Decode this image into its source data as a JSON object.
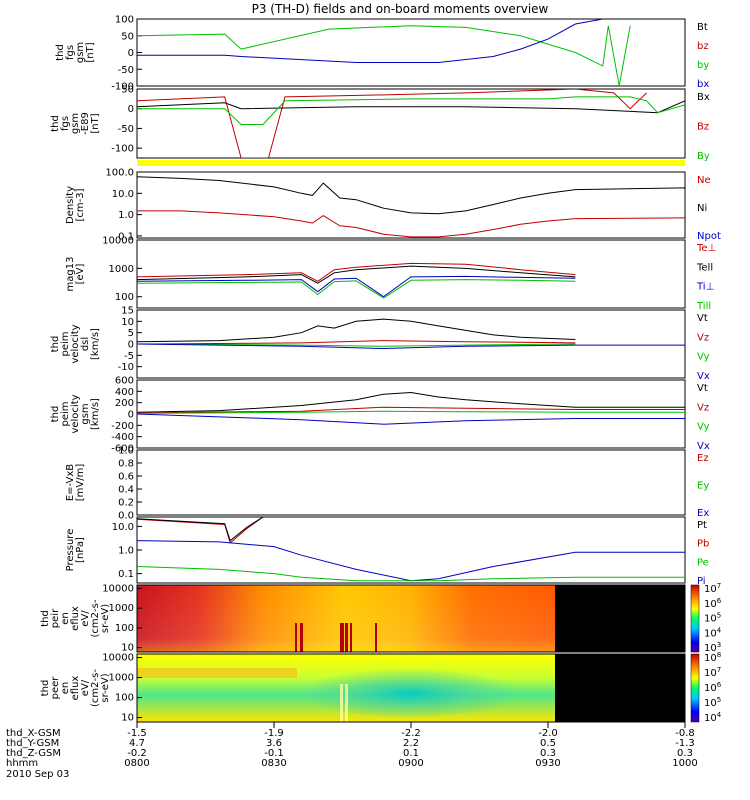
{
  "title": "P3 (TH-D) fields and on-board moments overview",
  "date_label": "2010 Sep 03",
  "footer": {
    "row_labels": [
      "thd_X-GSM",
      "thd_Y-GSM",
      "thd_Z-GSM",
      "hhmm"
    ],
    "columns": [
      {
        "x": "-1.5",
        "y": "4.7",
        "z": "-0.2",
        "t": "0800"
      },
      {
        "x": "-1.9",
        "y": "3.6",
        "z": "-0.1",
        "t": "0830"
      },
      {
        "x": "-2.2",
        "y": "2.2",
        "z": "0.1",
        "t": "0900"
      },
      {
        "x": "-2.0",
        "y": "0.5",
        "z": "0.3",
        "t": "0930"
      },
      {
        "x": "-0.8",
        "y": "-1.3",
        "z": "0.3",
        "t": "1000"
      }
    ]
  },
  "colors": {
    "black": "#000000",
    "red": "#c00000",
    "green": "#00c000",
    "blue": "#0000c0",
    "yellow": "#ffff00"
  },
  "chart_data": [
    {
      "type": "line",
      "ylabel": [
        "thd",
        "fgs",
        "gsm",
        "[nT]"
      ],
      "ylim": [
        -100,
        100
      ],
      "yticks": [
        {
          "v": 100,
          "l": "100"
        },
        {
          "v": 50,
          "l": "50"
        },
        {
          "v": 0,
          "l": "0"
        },
        {
          "v": -50,
          "l": "-50"
        },
        {
          "v": -100,
          "l": "-100"
        }
      ],
      "legend": [
        {
          "t": "Bt",
          "c": "#000000"
        },
        {
          "t": "bz",
          "c": "#c00000"
        },
        {
          "t": "by",
          "c": "#00c000"
        },
        {
          "t": "bx",
          "c": "#0000c0"
        }
      ],
      "series": [
        {
          "color": "#00c000",
          "x": [
            0,
            0.16,
            0.19,
            0.35,
            0.5,
            0.6,
            0.7,
            0.8,
            0.85,
            0.86,
            0.88,
            0.9
          ],
          "y": [
            50,
            55,
            10,
            70,
            80,
            75,
            50,
            0,
            -40,
            80,
            -100,
            80
          ]
        },
        {
          "color": "#0000c0",
          "x": [
            0,
            0.16,
            0.19,
            0.4,
            0.55,
            0.65,
            0.7,
            0.75,
            0.8,
            0.85
          ],
          "y": [
            -8,
            -8,
            -12,
            -30,
            -30,
            -12,
            10,
            40,
            85,
            100
          ]
        }
      ]
    },
    {
      "type": "line",
      "ylabel": [
        "thd",
        "fgs",
        "gsm",
        "-E89",
        "[nT]"
      ],
      "ylim": [
        -125,
        50
      ],
      "yticks": [
        {
          "v": 50,
          "l": "50"
        },
        {
          "v": 0,
          "l": "0"
        },
        {
          "v": -50,
          "l": "-50"
        },
        {
          "v": -100,
          "l": "-100"
        }
      ],
      "legend": [
        {
          "t": "Bx",
          "c": "#000000"
        },
        {
          "t": "Bz",
          "c": "#c00000"
        },
        {
          "t": "By",
          "c": "#00c000"
        }
      ],
      "series": [
        {
          "color": "#c00000",
          "x": [
            0,
            0.16,
            0.19,
            0.24,
            0.27,
            0.45,
            0.6,
            0.8,
            0.87,
            0.9,
            0.93
          ],
          "y": [
            20,
            30,
            -125,
            -125,
            30,
            35,
            40,
            50,
            40,
            0,
            40
          ]
        },
        {
          "color": "#000000",
          "x": [
            0,
            0.16,
            0.19,
            0.4,
            0.6,
            0.8,
            0.95,
            1
          ],
          "y": [
            5,
            15,
            0,
            5,
            5,
            0,
            -10,
            20
          ]
        },
        {
          "color": "#00c000",
          "x": [
            0,
            0.16,
            0.19,
            0.23,
            0.27,
            0.5,
            0.75,
            0.8,
            0.9,
            0.93,
            0.95,
            1
          ],
          "y": [
            0,
            0,
            -40,
            -40,
            20,
            25,
            25,
            30,
            30,
            20,
            -10,
            10
          ]
        }
      ]
    },
    {
      "type": "line",
      "ylabel": [
        "Density",
        "[cm-3]"
      ],
      "ylim": [
        0.08,
        100
      ],
      "yscale": "log",
      "yticks": [
        {
          "v": 100,
          "l": "100.0"
        },
        {
          "v": 10,
          "l": "10.0"
        },
        {
          "v": 1,
          "l": "1.0"
        },
        {
          "v": 0.1,
          "l": "0.1"
        }
      ],
      "legend": [
        {
          "t": "Ne",
          "c": "#c00000"
        },
        {
          "t": "Ni",
          "c": "#000000"
        },
        {
          "t": "Npot",
          "c": "#0000c0"
        }
      ],
      "series": [
        {
          "color": "#000000",
          "x": [
            0,
            0.08,
            0.15,
            0.25,
            0.3,
            0.32,
            0.34,
            0.37,
            0.4,
            0.45,
            0.5,
            0.55,
            0.6,
            0.65,
            0.7,
            0.75,
            0.8,
            1
          ],
          "y": [
            60,
            50,
            40,
            20,
            10,
            8,
            30,
            6,
            5,
            2,
            1.2,
            1.1,
            1.5,
            3,
            6,
            10,
            15,
            18
          ]
        },
        {
          "color": "#c00000",
          "x": [
            0,
            0.08,
            0.15,
            0.25,
            0.3,
            0.32,
            0.34,
            0.37,
            0.4,
            0.45,
            0.5,
            0.55,
            0.6,
            0.65,
            0.7,
            0.75,
            0.8,
            1
          ],
          "y": [
            1.5,
            1.5,
            1.2,
            0.8,
            0.5,
            0.4,
            0.9,
            0.3,
            0.25,
            0.12,
            0.09,
            0.09,
            0.12,
            0.2,
            0.35,
            0.5,
            0.65,
            0.7
          ]
        }
      ]
    },
    {
      "type": "line",
      "ylabel": [
        "mag13",
        "[eV]"
      ],
      "ylim": [
        40,
        10000
      ],
      "yscale": "log",
      "yticks": [
        {
          "v": 10000,
          "l": "10000"
        },
        {
          "v": 1000,
          "l": "1000"
        },
        {
          "v": 100,
          "l": "100"
        }
      ],
      "legend": [
        {
          "t": "Te⊥",
          "c": "#c00000"
        },
        {
          "t": "Tell",
          "c": "#000000"
        },
        {
          "t": "Ti⊥",
          "c": "#0000c0"
        },
        {
          "t": "Till",
          "c": "#00c000"
        }
      ],
      "series": [
        {
          "color": "#c00000",
          "x": [
            0,
            0.2,
            0.3,
            0.33,
            0.36,
            0.4,
            0.5,
            0.6,
            0.7,
            0.8
          ],
          "y": [
            500,
            600,
            700,
            350,
            900,
            1100,
            1500,
            1400,
            900,
            600
          ]
        },
        {
          "color": "#000000",
          "x": [
            0,
            0.2,
            0.3,
            0.33,
            0.36,
            0.4,
            0.5,
            0.6,
            0.7,
            0.8
          ],
          "y": [
            400,
            500,
            600,
            300,
            700,
            900,
            1200,
            1000,
            700,
            500
          ]
        },
        {
          "color": "#0000c0",
          "x": [
            0,
            0.2,
            0.3,
            0.33,
            0.36,
            0.4,
            0.45,
            0.5,
            0.6,
            0.7,
            0.8
          ],
          "y": [
            350,
            380,
            400,
            150,
            420,
            450,
            100,
            500,
            520,
            480,
            450
          ]
        },
        {
          "color": "#00c000",
          "x": [
            0,
            0.2,
            0.3,
            0.33,
            0.36,
            0.4,
            0.45,
            0.5,
            0.6,
            0.7,
            0.8
          ],
          "y": [
            300,
            320,
            330,
            120,
            340,
            360,
            90,
            380,
            400,
            380,
            350
          ]
        }
      ]
    },
    {
      "type": "line",
      "ylabel": [
        "thd",
        "peim",
        "velocity",
        "dsl",
        "[km/s]"
      ],
      "ylim": [
        -15,
        15
      ],
      "yticks": [
        {
          "v": 15,
          "l": "15"
        },
        {
          "v": 10,
          "l": "10"
        },
        {
          "v": 5,
          "l": "5"
        },
        {
          "v": 0,
          "l": "0"
        },
        {
          "v": -5,
          "l": "-5"
        },
        {
          "v": -10,
          "l": "-10"
        }
      ],
      "legend": [
        {
          "t": "Vt",
          "c": "#000000"
        },
        {
          "t": "Vz",
          "c": "#c00000"
        },
        {
          "t": "Vy",
          "c": "#00c000"
        },
        {
          "t": "Vx",
          "c": "#0000c0"
        }
      ],
      "series": [
        {
          "color": "#000000",
          "x": [
            0,
            0.15,
            0.25,
            0.3,
            0.33,
            0.36,
            0.4,
            0.45,
            0.5,
            0.55,
            0.6,
            0.65,
            0.7,
            0.8
          ],
          "y": [
            1,
            1.5,
            3,
            5,
            8,
            7,
            10,
            11,
            10,
            8,
            6,
            4,
            3,
            2
          ]
        },
        {
          "color": "#c00000",
          "x": [
            0,
            0.3,
            0.45,
            0.6,
            0.8
          ],
          "y": [
            0,
            0.5,
            1.5,
            1,
            0.5
          ]
        },
        {
          "color": "#00c000",
          "x": [
            0,
            0.3,
            0.45,
            0.6,
            0.8
          ],
          "y": [
            0,
            -0.5,
            -1,
            -0.5,
            0
          ]
        },
        {
          "color": "#0000c0",
          "x": [
            0,
            0.3,
            0.45,
            0.6,
            0.8,
            1
          ],
          "y": [
            0,
            -1,
            -2,
            -1,
            -0.5,
            -0.5
          ]
        }
      ]
    },
    {
      "type": "line",
      "ylabel": [
        "thd",
        "peim",
        "velocity",
        "gsm",
        "[km/s]"
      ],
      "ylim": [
        -600,
        600
      ],
      "yticks": [
        {
          "v": 600,
          "l": "600"
        },
        {
          "v": 400,
          "l": "400"
        },
        {
          "v": 200,
          "l": "200"
        },
        {
          "v": 0,
          "l": "0"
        },
        {
          "v": -200,
          "l": "-200"
        },
        {
          "v": -400,
          "l": "-400"
        },
        {
          "v": -600,
          "l": "-600"
        }
      ],
      "legend": [
        {
          "t": "Vt",
          "c": "#000000"
        },
        {
          "t": "Vz",
          "c": "#c00000"
        },
        {
          "t": "Vy",
          "c": "#00c000"
        },
        {
          "t": "Vx",
          "c": "#0000c0"
        }
      ],
      "series": [
        {
          "color": "#000000",
          "x": [
            0,
            0.15,
            0.3,
            0.4,
            0.45,
            0.5,
            0.55,
            0.6,
            0.7,
            0.8,
            1
          ],
          "y": [
            30,
            60,
            150,
            250,
            350,
            380,
            300,
            250,
            180,
            120,
            120
          ]
        },
        {
          "color": "#c00000",
          "x": [
            0,
            0.3,
            0.45,
            0.6,
            0.8,
            1
          ],
          "y": [
            20,
            50,
            120,
            100,
            80,
            80
          ]
        },
        {
          "color": "#00c000",
          "x": [
            0,
            0.3,
            0.45,
            0.6,
            0.8,
            1
          ],
          "y": [
            10,
            30,
            50,
            40,
            30,
            30
          ]
        },
        {
          "color": "#0000c0",
          "x": [
            0,
            0.3,
            0.45,
            0.6,
            0.8,
            1
          ],
          "y": [
            0,
            -100,
            -180,
            -120,
            -80,
            -80
          ]
        }
      ]
    },
    {
      "type": "line",
      "ylabel": [
        "E=-VxB",
        "[mV/m]"
      ],
      "ylim": [
        0,
        1
      ],
      "yticks": [
        {
          "v": 1,
          "l": "1.0"
        },
        {
          "v": 0.8,
          "l": "0.8"
        },
        {
          "v": 0.6,
          "l": "0.6"
        },
        {
          "v": 0.4,
          "l": "0.4"
        },
        {
          "v": 0.2,
          "l": "0.2"
        },
        {
          "v": 0,
          "l": "0.0"
        }
      ],
      "legend": [
        {
          "t": "Ez",
          "c": "#c00000"
        },
        {
          "t": "Ey",
          "c": "#00c000"
        },
        {
          "t": "Ex",
          "c": "#0000c0"
        }
      ],
      "series": []
    },
    {
      "type": "line",
      "ylabel": [
        "Pressure",
        "[nPa]"
      ],
      "ylim": [
        0.04,
        25
      ],
      "yscale": "log",
      "yticks": [
        {
          "v": 10,
          "l": "10.0"
        },
        {
          "v": 1,
          "l": "1.0"
        },
        {
          "v": 0.1,
          "l": "0.1"
        }
      ],
      "legend": [
        {
          "t": "Pt",
          "c": "#000000"
        },
        {
          "t": "Pb",
          "c": "#c00000"
        },
        {
          "t": "Pe",
          "c": "#00c000"
        },
        {
          "t": "Pi",
          "c": "#0000c0"
        }
      ],
      "series": [
        {
          "color": "#c00000",
          "x": [
            0,
            0.16,
            0.17,
            0.2,
            0.23
          ],
          "y": [
            20,
            12,
            2,
            8,
            25
          ]
        },
        {
          "color": "#000000",
          "x": [
            0,
            0.16,
            0.17,
            0.2,
            0.23
          ],
          "y": [
            21,
            13,
            2.5,
            9,
            25
          ]
        },
        {
          "color": "#0000c0",
          "x": [
            0,
            0.15,
            0.25,
            0.3,
            0.4,
            0.5,
            0.55,
            0.65,
            0.8,
            1
          ],
          "y": [
            2.5,
            2.2,
            1.4,
            0.6,
            0.15,
            0.05,
            0.06,
            0.2,
            0.8,
            0.8
          ]
        },
        {
          "color": "#00c000",
          "x": [
            0,
            0.15,
            0.25,
            0.3,
            0.4,
            0.5,
            0.55,
            0.65,
            0.8,
            1
          ],
          "y": [
            0.2,
            0.15,
            0.1,
            0.07,
            0.05,
            0.05,
            0.05,
            0.06,
            0.07,
            0.07
          ]
        }
      ]
    },
    {
      "type": "heatmap",
      "ylabel": [
        "thd",
        "peir",
        "en",
        "eflux",
        "eV/",
        "(cm2-s-",
        "sr-eV)"
      ],
      "yticks": [
        {
          "v": 10000,
          "l": "10000"
        },
        {
          "v": 1000,
          "l": "1000"
        },
        {
          "v": 100,
          "l": "100"
        },
        {
          "v": 10,
          "l": "10"
        }
      ],
      "colorbar": [
        "10^3",
        "10^4",
        "10^5",
        "10^6",
        "10^7"
      ]
    },
    {
      "type": "heatmap",
      "ylabel": [
        "thd",
        "peer",
        "en",
        "eflux",
        "eV/",
        "(cm2-s-",
        "sr-eV)"
      ],
      "yticks": [
        {
          "v": 10000,
          "l": "10000"
        },
        {
          "v": 1000,
          "l": "1000"
        },
        {
          "v": 100,
          "l": "100"
        },
        {
          "v": 10,
          "l": "10"
        }
      ],
      "colorbar": [
        "10^4",
        "10^5",
        "10^6",
        "10^7",
        "10^8"
      ]
    }
  ]
}
